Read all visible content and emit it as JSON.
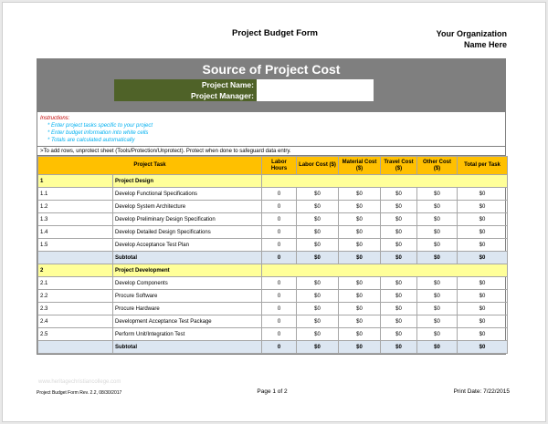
{
  "header": {
    "title": "Project Budget Form",
    "org_line1": "Your Organization",
    "org_line2": "Name Here"
  },
  "banner": {
    "title": "Source of Project Cost",
    "project_name_label": "Project Name:",
    "project_manager_label": "Project Manager:",
    "project_name_value": "",
    "project_manager_value": ""
  },
  "instructions": {
    "heading": "Instructions:",
    "lines": [
      "* Enter project tasks specific to your project",
      "* Enter budget information into white cells",
      "* Totals are calculated automatically"
    ],
    "note": ">To add rows, unprotect sheet (Tools/Protection/Unprotect).  Protect when done to safeguard data entry."
  },
  "table": {
    "headers": {
      "task": "Project Task",
      "labor_hours": "Labor Hours",
      "labor_cost": "Labor Cost ($)",
      "material_cost": "Material Cost ($)",
      "travel_cost": "Travel Cost ($)",
      "other_cost": "Other Cost ($)",
      "total": "Total per Task"
    },
    "sections": [
      {
        "num": "1",
        "name": "Project Design",
        "rows": [
          {
            "id": "1.1",
            "task": "Develop Functional Specifications",
            "hours": "0",
            "labor": "$0",
            "material": "$0",
            "travel": "$0",
            "other": "$0",
            "total": "$0"
          },
          {
            "id": "1.2",
            "task": "Develop System Architecture",
            "hours": "0",
            "labor": "$0",
            "material": "$0",
            "travel": "$0",
            "other": "$0",
            "total": "$0"
          },
          {
            "id": "1.3",
            "task": "Develop Preliminary Design Specification",
            "hours": "0",
            "labor": "$0",
            "material": "$0",
            "travel": "$0",
            "other": "$0",
            "total": "$0"
          },
          {
            "id": "1.4",
            "task": "Develop Detailed Design Specifications",
            "hours": "0",
            "labor": "$0",
            "material": "$0",
            "travel": "$0",
            "other": "$0",
            "total": "$0"
          },
          {
            "id": "1.5",
            "task": "Develop Acceptance Test Plan",
            "hours": "0",
            "labor": "$0",
            "material": "$0",
            "travel": "$0",
            "other": "$0",
            "total": "$0"
          }
        ],
        "subtotal": {
          "label": "Subtotal",
          "hours": "0",
          "labor": "$0",
          "material": "$0",
          "travel": "$0",
          "other": "$0",
          "total": "$0"
        }
      },
      {
        "num": "2",
        "name": "Project Development",
        "rows": [
          {
            "id": "2.1",
            "task": "Develop Components",
            "hours": "0",
            "labor": "$0",
            "material": "$0",
            "travel": "$0",
            "other": "$0",
            "total": "$0"
          },
          {
            "id": "2.2",
            "task": "Procure Software",
            "hours": "0",
            "labor": "$0",
            "material": "$0",
            "travel": "$0",
            "other": "$0",
            "total": "$0"
          },
          {
            "id": "2.3",
            "task": "Procure Hardware",
            "hours": "0",
            "labor": "$0",
            "material": "$0",
            "travel": "$0",
            "other": "$0",
            "total": "$0"
          },
          {
            "id": "2.4",
            "task": "Development Acceptance Test Package",
            "hours": "0",
            "labor": "$0",
            "material": "$0",
            "travel": "$0",
            "other": "$0",
            "total": "$0"
          },
          {
            "id": "2.5",
            "task": "Perform Unit/Integration Test",
            "hours": "0",
            "labor": "$0",
            "material": "$0",
            "travel": "$0",
            "other": "$0",
            "total": "$0"
          }
        ],
        "subtotal": {
          "label": "Subtotal",
          "hours": "0",
          "labor": "$0",
          "material": "$0",
          "travel": "$0",
          "other": "$0",
          "total": "$0"
        }
      }
    ]
  },
  "footer": {
    "left": "Project Budget Form Rev. 2.2, 08/30/2017",
    "center": "Page 1 of 2",
    "right": "Print Date:  7/22/2015",
    "watermark": "www.heritagechristiancollege.com"
  },
  "colors": {
    "banner": "#7f7f7f",
    "header_row": "#ffc000",
    "section_row": "#ffff99",
    "subtotal_row": "#dce6f1",
    "project_label_bg": "#4f6228"
  }
}
